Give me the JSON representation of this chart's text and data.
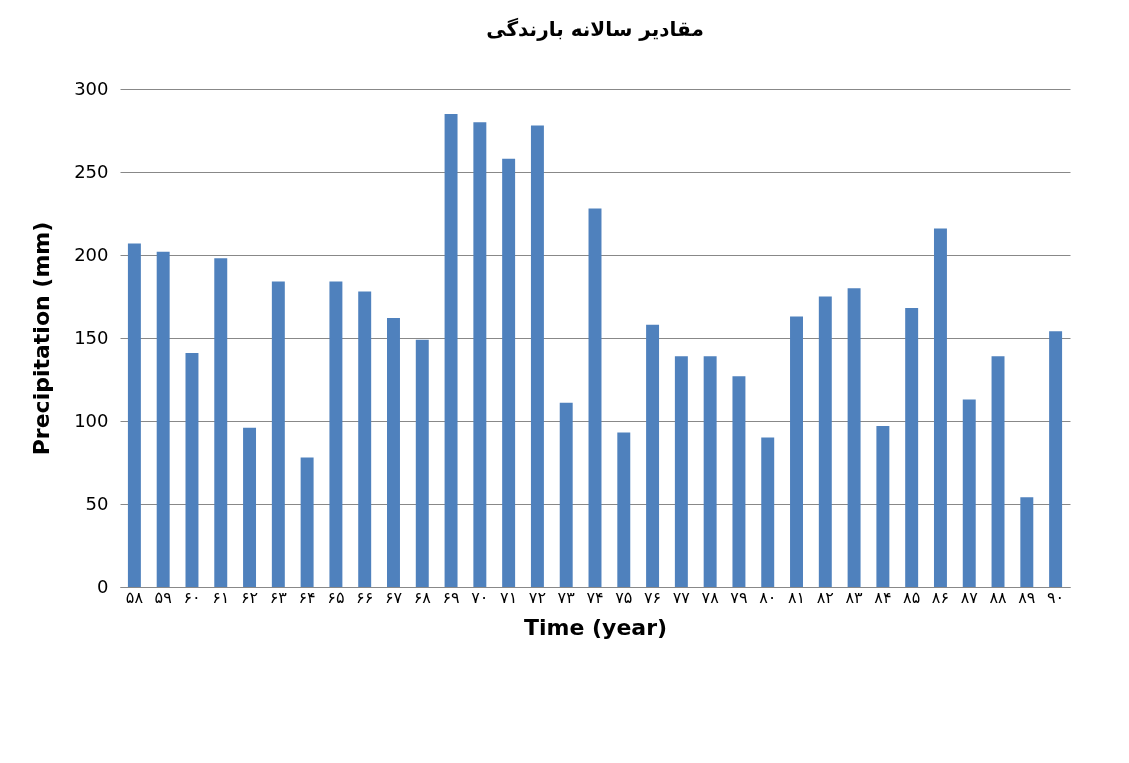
{
  "chart_data": {
    "type": "bar",
    "title": "مقادیر سالانه بارندگی",
    "xlabel": "Time (year)",
    "ylabel": "Precipitation (mm)",
    "categories": [
      "۵۸",
      "۵۹",
      "۶۰",
      "۶۱",
      "۶۲",
      "۶۳",
      "۶۴",
      "۶۵",
      "۶۶",
      "۶۷",
      "۶۸",
      "۶۹",
      "۷۰",
      "۷۱",
      "۷۲",
      "۷۳",
      "۷۴",
      "۷۵",
      "۷۶",
      "۷۷",
      "۷۸",
      "۷۹",
      "۸۰",
      "۸۱",
      "۸۲",
      "۸۳",
      "۸۴",
      "۸۵",
      "۸۶",
      "۸۷",
      "۸۸",
      "۸۹",
      "۹۰"
    ],
    "values": [
      207,
      202,
      141,
      198,
      96,
      184,
      78,
      184,
      178,
      162,
      149,
      285,
      280,
      258,
      278,
      111,
      228,
      93,
      158,
      139,
      139,
      127,
      90,
      163,
      175,
      180,
      97,
      168,
      216,
      113,
      139,
      54,
      154
    ],
    "color": "#4f81bd",
    "ylim": [
      0,
      300
    ],
    "yticks": [
      0,
      50,
      100,
      150,
      200,
      250,
      300
    ],
    "grid": "y"
  }
}
